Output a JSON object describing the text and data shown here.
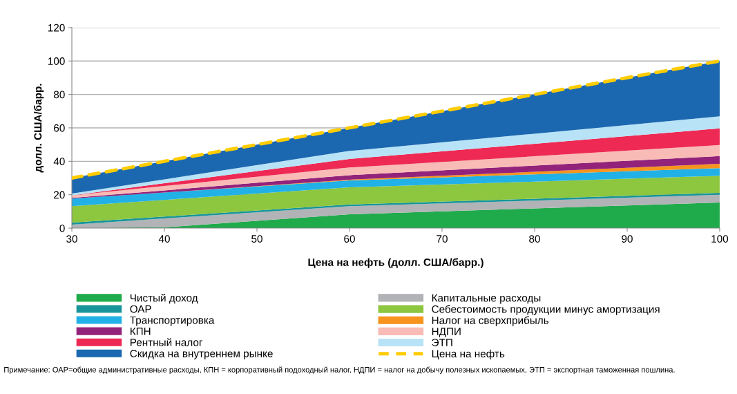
{
  "chart_data": {
    "type": "area",
    "stacked": true,
    "xlabel": "Цена на нефть (долл. США/барр.)",
    "ylabel": "долл. США/барр.",
    "x": [
      30,
      40,
      60,
      80,
      100
    ],
    "series": [
      {
        "name": "Чистый доход",
        "color": "#1fab4b",
        "values": [
          0,
          0.5,
          8.3,
          11.8,
          15.3
        ]
      },
      {
        "name": "Капитальные расходы",
        "color": "#b1b3b6",
        "values": [
          2.1,
          5.3,
          4.8,
          4.7,
          4.7
        ]
      },
      {
        "name": "ОАР",
        "color": "#17959a",
        "values": [
          1.2,
          1.1,
          1.1,
          1.1,
          1.1
        ]
      },
      {
        "name": "Себестоимость продукции минус амортизация",
        "color": "#8dc63f",
        "values": [
          9.8,
          10.0,
          10.2,
          10.2,
          10.2
        ]
      },
      {
        "name": "Транспортировка",
        "color": "#22b1e6",
        "values": [
          4.6,
          4.4,
          4.1,
          4.4,
          4.6
        ]
      },
      {
        "name": "Налог на сверхприбыль",
        "color": "#f7941d",
        "values": [
          0,
          0,
          0.5,
          1.5,
          2.6
        ]
      },
      {
        "name": "КПН",
        "color": "#93237a",
        "values": [
          0.4,
          1.3,
          2.7,
          3.7,
          4.6
        ]
      },
      {
        "name": "НДПИ",
        "color": "#f9bbb5",
        "values": [
          1.5,
          2.6,
          4.6,
          5.6,
          6.6
        ]
      },
      {
        "name": "Рентный налог",
        "color": "#ee2a54",
        "values": [
          0,
          1.7,
          5.1,
          7.5,
          10.0
        ]
      },
      {
        "name": "ЭТП",
        "color": "#b8e3f7",
        "values": [
          1.1,
          2.3,
          4.8,
          6.0,
          7.2
        ]
      },
      {
        "name": "Скидка на внутреннем рынке",
        "color": "#1b68b0",
        "values": [
          9.3,
          10.8,
          13.8,
          23.5,
          33.1
        ]
      },
      {
        "name": "Цена на нефть",
        "type": "line",
        "color": "#ffcc00",
        "line_style": "dashed",
        "values": [
          30,
          40,
          60,
          80,
          100
        ]
      }
    ],
    "xlim": [
      30,
      100
    ],
    "xticks": [
      30,
      40,
      50,
      60,
      70,
      80,
      90,
      100
    ],
    "ylim": [
      0,
      120
    ],
    "yticks": [
      0,
      20,
      40,
      60,
      80,
      100,
      120
    ],
    "grid": "y",
    "legend": "bottom",
    "annotations": [
      "Примечание: ОАР=общие административные расходы, КПН = корпоративный подоходный налог, НДПИ = налог на добычу полезных ископаемых, ЭТП = экспортная таможенная пошлина."
    ]
  }
}
